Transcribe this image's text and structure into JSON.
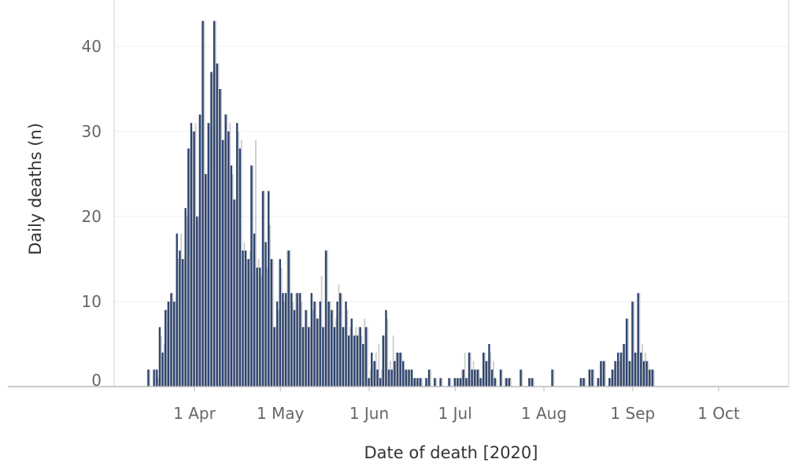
{
  "chart_data": {
    "type": "bar",
    "title": "",
    "xlabel": "Date of death [2020]",
    "ylabel": "Daily deaths (n)",
    "ylim": [
      0,
      45
    ],
    "xlim": [
      "2020-03-12",
      "2020-10-22"
    ],
    "grid": true,
    "y_ticks": [
      0,
      10,
      20,
      30,
      40
    ],
    "x_ticks": [
      {
        "date": "2020-04-01",
        "label": "1 Apr"
      },
      {
        "date": "2020-05-01",
        "label": "1 May"
      },
      {
        "date": "2020-06-01",
        "label": "1 Jun"
      },
      {
        "date": "2020-07-01",
        "label": "1 Jul"
      },
      {
        "date": "2020-08-01",
        "label": "1 Aug"
      },
      {
        "date": "2020-09-01",
        "label": "1 Sep"
      },
      {
        "date": "2020-10-01",
        "label": "1 Oct"
      }
    ],
    "start_date": "2020-03-16",
    "series": [
      {
        "values": [
          2,
          0,
          2,
          2,
          7,
          4,
          9,
          10,
          11,
          10,
          18,
          16,
          15,
          21,
          28,
          31,
          30,
          20,
          32,
          43,
          25,
          31,
          37,
          43,
          38,
          35,
          29,
          32,
          30,
          26,
          22,
          31,
          28,
          16,
          16,
          15,
          26,
          18,
          14,
          14,
          23,
          17,
          23,
          15,
          7,
          10,
          15,
          11,
          11,
          16,
          11,
          9,
          11,
          11,
          7,
          9,
          7,
          11,
          10,
          8,
          10,
          7,
          16,
          10,
          9,
          7,
          10,
          11,
          7,
          10,
          6,
          8,
          6,
          6,
          7,
          5,
          7,
          1,
          4,
          3,
          2,
          1,
          6,
          9,
          2,
          2,
          3,
          4,
          4,
          3,
          2,
          2,
          2,
          1,
          1,
          1,
          0,
          1,
          2,
          0,
          1,
          0,
          1,
          0,
          0,
          1,
          0,
          1,
          1,
          1,
          2,
          1,
          4,
          2,
          2,
          2,
          1,
          4,
          3,
          5,
          2,
          1,
          0,
          2,
          0,
          1,
          1,
          0,
          0,
          0,
          2,
          0,
          0,
          1,
          1,
          0,
          0,
          0,
          0,
          0,
          0,
          2,
          0,
          0,
          0,
          0,
          0,
          0,
          0,
          0,
          0,
          1,
          1,
          0,
          2,
          2,
          0,
          1,
          3,
          3,
          0,
          1,
          2,
          3,
          4,
          4,
          5,
          8,
          3,
          10,
          4,
          11,
          4,
          3,
          3,
          2,
          2
        ],
        "color": "#2e4570"
      },
      {
        "values": [
          2,
          0,
          2,
          1,
          6,
          5,
          9,
          10,
          11,
          10,
          15,
          18,
          15,
          20,
          28,
          30,
          31,
          20,
          32,
          43,
          25,
          31,
          37,
          43,
          38,
          35,
          29,
          32,
          31,
          25,
          22,
          30,
          29,
          17,
          15,
          16,
          26,
          29,
          15,
          13,
          23,
          14,
          19,
          15,
          7,
          9,
          14,
          10,
          16,
          16,
          10,
          11,
          11,
          10,
          7,
          9,
          7,
          9,
          10,
          8,
          13,
          7,
          16,
          10,
          9,
          8,
          12,
          11,
          7,
          9,
          7,
          6,
          7,
          7,
          6,
          8,
          7,
          2,
          3,
          4,
          5,
          2,
          6,
          8,
          3,
          6,
          4,
          4,
          4,
          2,
          2,
          2,
          1,
          1,
          1,
          1,
          0,
          1,
          2,
          0,
          1,
          0,
          1,
          0,
          0,
          1,
          0,
          1,
          1,
          2,
          4,
          1,
          4,
          3,
          2,
          2,
          1,
          4,
          3,
          4,
          3,
          1,
          0,
          2,
          1,
          1,
          1,
          0,
          0,
          0,
          2,
          0,
          0,
          1,
          1,
          0,
          0,
          0,
          0,
          0,
          0,
          2,
          0,
          0,
          0,
          0,
          0,
          0,
          0,
          0,
          0,
          1,
          1,
          0,
          2,
          2,
          0,
          1,
          3,
          3,
          0,
          1,
          2,
          3,
          3,
          4,
          5,
          8,
          3,
          10,
          4,
          11,
          5,
          4,
          3,
          2,
          2
        ],
        "color": "#cccccc"
      }
    ]
  }
}
